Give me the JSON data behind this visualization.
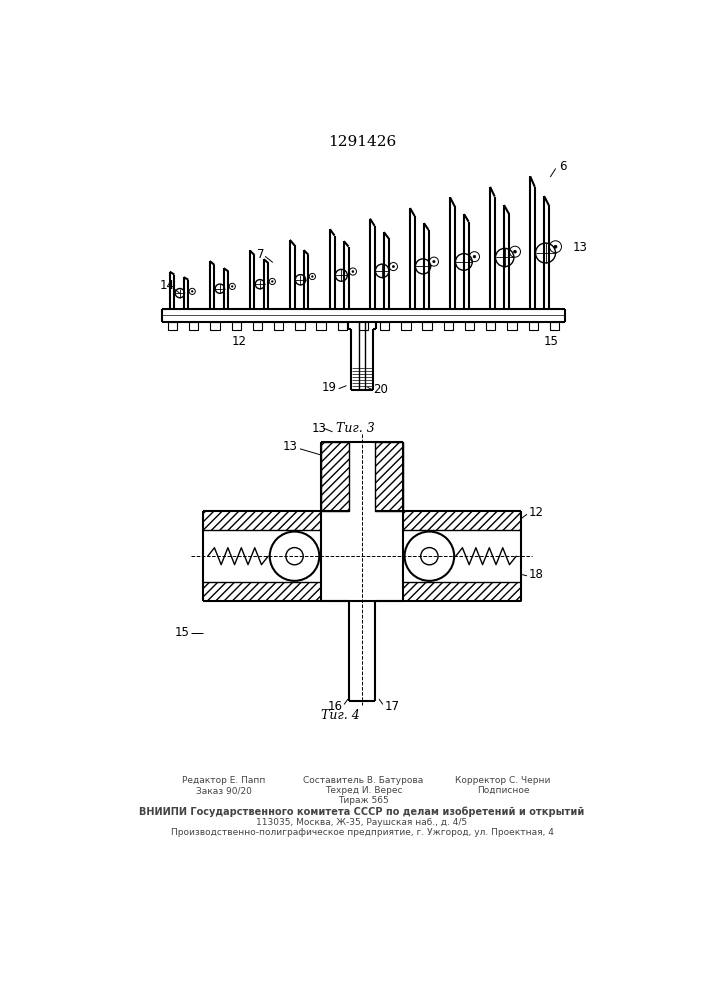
{
  "title": "1291426",
  "fig3_label": "Τиг. 3",
  "fig4_label": "Τиг. 4",
  "bg_color": "#ffffff",
  "line_color": "#000000",
  "footer_col1_line1": "Редактор Е. Папп",
  "footer_col1_line2": "Заказ 90/20",
  "footer_col2_line1": "Составитель В. Батурова",
  "footer_col2_line2": "Техред И. Верес",
  "footer_col2_line3": "Тираж 565",
  "footer_col3_line1": "Корректор С. Черни",
  "footer_col3_line2": "Подписное",
  "footer_line3": "ВНИИПИ Государственного комитета СССР по делам изобретений и открытий",
  "footer_line4": "113035, Москва, Ж-35, Раушская наб., д. 4/5",
  "footer_line5": "Производственно-полиграфическое предприятие, г. Ужгород, ул. Проектная, 4"
}
